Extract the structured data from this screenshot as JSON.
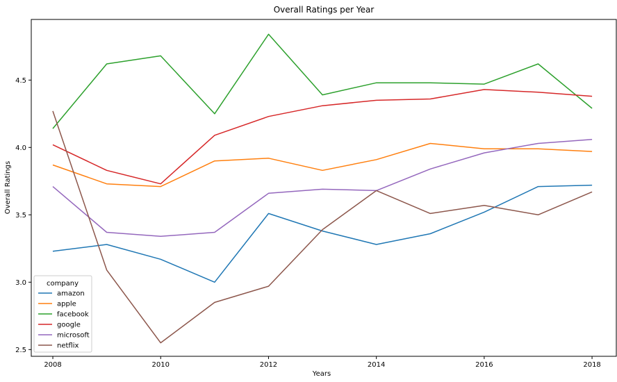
{
  "chart_data": {
    "type": "line",
    "title": "Overall Ratings per Year",
    "xlabel": "Years",
    "ylabel": "Overall Ratings",
    "x": [
      2008,
      2009,
      2010,
      2011,
      2012,
      2013,
      2014,
      2015,
      2016,
      2017,
      2018
    ],
    "xlim": [
      2007.6,
      2018.45
    ],
    "ylim": [
      2.45,
      4.95
    ],
    "xticks": [
      2008,
      2010,
      2012,
      2014,
      2016,
      2018
    ],
    "yticks": [
      2.5,
      3.0,
      3.5,
      4.0,
      4.5
    ],
    "ytick_labels": [
      "2.5",
      "3.0",
      "3.5",
      "4.0",
      "4.5"
    ],
    "grid": false,
    "legend": {
      "title": "company",
      "placement": "lower-left"
    },
    "series": [
      {
        "name": "amazon",
        "color": "#1f77b4",
        "values": [
          3.23,
          3.28,
          3.17,
          3.0,
          3.51,
          3.38,
          3.28,
          3.36,
          3.52,
          3.71,
          3.72
        ]
      },
      {
        "name": "apple",
        "color": "#ff7f0e",
        "values": [
          3.87,
          3.73,
          3.71,
          3.9,
          3.92,
          3.83,
          3.91,
          4.03,
          3.99,
          3.99,
          3.97
        ]
      },
      {
        "name": "facebook",
        "color": "#2ca02c",
        "values": [
          4.14,
          4.62,
          4.68,
          4.25,
          4.84,
          4.39,
          4.48,
          4.48,
          4.47,
          4.62,
          4.29
        ]
      },
      {
        "name": "google",
        "color": "#d62728",
        "values": [
          4.02,
          3.83,
          3.73,
          4.09,
          4.23,
          4.31,
          4.35,
          4.36,
          4.43,
          4.41,
          4.38
        ]
      },
      {
        "name": "microsoft",
        "color": "#9467bd",
        "values": [
          3.71,
          3.37,
          3.34,
          3.37,
          3.66,
          3.69,
          3.68,
          3.84,
          3.96,
          4.03,
          4.06
        ]
      },
      {
        "name": "netflix",
        "color": "#8c564b",
        "values": [
          4.27,
          3.09,
          2.55,
          2.85,
          2.97,
          3.39,
          3.68,
          3.51,
          3.57,
          3.5,
          3.67
        ]
      }
    ]
  }
}
